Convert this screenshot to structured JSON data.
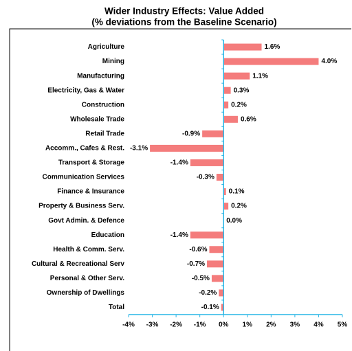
{
  "chart_data": {
    "type": "bar",
    "orientation": "horizontal",
    "title": "Wider Industry Effects: Value Added",
    "subtitle": "(% deviations from the Baseline Scenario)",
    "categories": [
      "Agriculture",
      "Mining",
      "Manufacturing",
      "Electricity, Gas & Water",
      "Construction",
      "Wholesale Trade",
      "Retail Trade",
      "Accomm., Cafes & Rest.",
      "Transport & Storage",
      "Communication Services",
      "Finance & Insurance",
      "Property & Business Serv.",
      "Govt Admin. & Defence",
      "Education",
      "Health & Comm. Serv.",
      "Cultural & Recreational Serv",
      "Personal & Other Serv.",
      "Ownership of Dwellings",
      "Total"
    ],
    "values": [
      1.6,
      4.0,
      1.1,
      0.3,
      0.2,
      0.6,
      -0.9,
      -3.1,
      -1.4,
      -0.3,
      0.1,
      0.2,
      0.0,
      -1.4,
      -0.6,
      -0.7,
      -0.5,
      -0.2,
      -0.1
    ],
    "value_labels": [
      "1.6%",
      "4.0%",
      "1.1%",
      "0.3%",
      "0.2%",
      "0.6%",
      "-0.9%",
      "-3.1%",
      "-1.4%",
      "-0.3%",
      "0.1%",
      "0.2%",
      "0.0%",
      "-1.4%",
      "-0.6%",
      "-0.7%",
      "-0.5%",
      "-0.2%",
      "-0.1%"
    ],
    "color": "#f47c7c",
    "xlim": [
      -4,
      5
    ],
    "xticks": [
      {
        "value": -4,
        "label": "-4%"
      },
      {
        "value": -3,
        "label": "-3%"
      },
      {
        "value": -2,
        "label": "-2%"
      },
      {
        "value": -1,
        "label": "-1%"
      },
      {
        "value": 0,
        "label": "0%"
      },
      {
        "value": 1,
        "label": "1%"
      },
      {
        "value": 2,
        "label": "2%"
      },
      {
        "value": 3,
        "label": "3%"
      },
      {
        "value": 4,
        "label": "4%"
      },
      {
        "value": 5,
        "label": "5%"
      }
    ]
  }
}
